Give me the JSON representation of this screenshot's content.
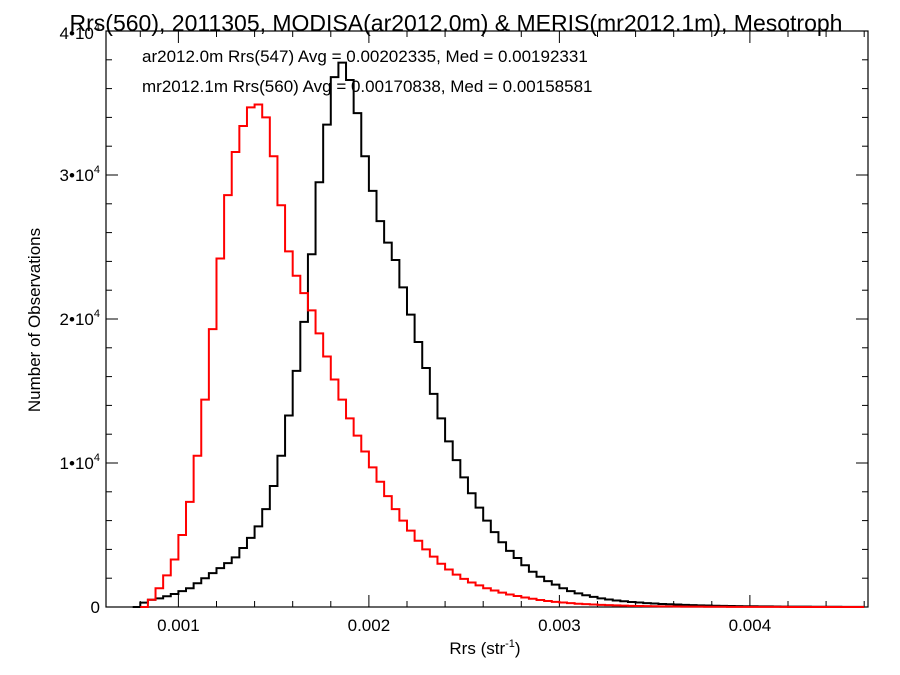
{
  "chart_data": {
    "type": "line",
    "title": "Rrs(560), 2011305, MODISA(ar2012.0m) & MERIS(mr2012.1m), Mesotroph",
    "xlabel_main": "Rrs (str",
    "xlabel_sup": "-1",
    "xlabel_close": ")",
    "ylabel": "Number of Observations",
    "xlim": [
      0.00062,
      0.00462
    ],
    "ylim": [
      0,
      40000
    ],
    "xticks": [
      {
        "value": 0.001,
        "label": "0.001"
      },
      {
        "value": 0.002,
        "label": "0.002"
      },
      {
        "value": 0.003,
        "label": "0.003"
      },
      {
        "value": 0.004,
        "label": "0.004"
      }
    ],
    "yticks": [
      {
        "value": 0,
        "label": "0",
        "exp": ""
      },
      {
        "value": 10000,
        "label": "1•10",
        "exp": "4"
      },
      {
        "value": 20000,
        "label": "2•10",
        "exp": "4"
      },
      {
        "value": 30000,
        "label": "3•10",
        "exp": "4"
      },
      {
        "value": 40000,
        "label": "4•10",
        "exp": "4"
      }
    ],
    "annotations": [
      {
        "text": "ar2012.0m Rrs(547) Avg = 0.00202335, Med = 0.00192331",
        "color": "#000000"
      },
      {
        "text": "mr2012.1m Rrs(560) Avg = 0.00170838, Med = 0.00158581",
        "color": "#ff0000"
      }
    ],
    "series": [
      {
        "color": "#000000",
        "x": [
          0.00078,
          0.00082,
          0.00086,
          0.0009,
          0.00094,
          0.00098,
          0.00102,
          0.00106,
          0.0011,
          0.00114,
          0.00118,
          0.00122,
          0.00126,
          0.0013,
          0.00134,
          0.00138,
          0.00142,
          0.00146,
          0.0015,
          0.00154,
          0.00158,
          0.00162,
          0.00166,
          0.0017,
          0.00174,
          0.00178,
          0.00182,
          0.00186,
          0.0019,
          0.00194,
          0.00198,
          0.00202,
          0.00206,
          0.0021,
          0.00214,
          0.00218,
          0.00222,
          0.00226,
          0.0023,
          0.00234,
          0.00238,
          0.00242,
          0.00246,
          0.0025,
          0.00254,
          0.00258,
          0.00262,
          0.00266,
          0.0027,
          0.00274,
          0.00278,
          0.00282,
          0.00286,
          0.0029,
          0.00294,
          0.00298,
          0.00302,
          0.00306,
          0.0031,
          0.00314,
          0.00318,
          0.00322,
          0.00326,
          0.0033,
          0.00334,
          0.00338,
          0.00342,
          0.00346,
          0.0035,
          0.00354,
          0.00358,
          0.00362,
          0.00366,
          0.0037,
          0.00374,
          0.00378,
          0.00382,
          0.00386,
          0.0039,
          0.00394,
          0.00398,
          0.00402,
          0.00406,
          0.0041,
          0.00414,
          0.00418,
          0.00422,
          0.00426,
          0.0043,
          0.00434,
          0.00438,
          0.00442,
          0.00446,
          0.0045,
          0.00454,
          0.00458
        ],
        "y": [
          0,
          300,
          500,
          600,
          750,
          900,
          1100,
          1300,
          1650,
          2000,
          2350,
          2700,
          3050,
          3450,
          4100,
          4800,
          5600,
          6800,
          8400,
          10500,
          13300,
          16400,
          19800,
          24500,
          29500,
          33500,
          36800,
          37800,
          36600,
          34300,
          31300,
          28900,
          26800,
          25300,
          24100,
          22200,
          20300,
          18400,
          16600,
          14800,
          13100,
          11500,
          10200,
          9000,
          7900,
          6900,
          6000,
          5200,
          4500,
          3900,
          3400,
          2900,
          2450,
          2100,
          1800,
          1550,
          1300,
          1100,
          950,
          820,
          700,
          600,
          520,
          450,
          400,
          350,
          310,
          270,
          240,
          210,
          190,
          170,
          150,
          130,
          115,
          100,
          90,
          80,
          70,
          60,
          55,
          50,
          45,
          40,
          35,
          30,
          28,
          25,
          22,
          20,
          18,
          16,
          14,
          12,
          10,
          8
        ]
      },
      {
        "color": "#ff0000",
        "x": [
          0.00082,
          0.00086,
          0.0009,
          0.00094,
          0.00098,
          0.00102,
          0.00106,
          0.0011,
          0.00114,
          0.00118,
          0.00122,
          0.00126,
          0.0013,
          0.00134,
          0.00138,
          0.00142,
          0.00146,
          0.0015,
          0.00154,
          0.00158,
          0.00162,
          0.00166,
          0.0017,
          0.00174,
          0.00178,
          0.00182,
          0.00186,
          0.0019,
          0.00194,
          0.00198,
          0.00202,
          0.00206,
          0.0021,
          0.00214,
          0.00218,
          0.00222,
          0.00226,
          0.0023,
          0.00234,
          0.00238,
          0.00242,
          0.00246,
          0.0025,
          0.00254,
          0.00258,
          0.00262,
          0.00266,
          0.0027,
          0.00274,
          0.00278,
          0.00282,
          0.00286,
          0.0029,
          0.00294,
          0.00298,
          0.00302,
          0.00306,
          0.0031,
          0.00314,
          0.00318,
          0.00322,
          0.00326,
          0.0033,
          0.00334,
          0.00338,
          0.00342,
          0.00346,
          0.0035,
          0.00354,
          0.00358,
          0.00362,
          0.00366,
          0.0037,
          0.00374,
          0.00378,
          0.00382,
          0.00386,
          0.0039,
          0.00394,
          0.00398,
          0.00402,
          0.00406,
          0.0041,
          0.00414,
          0.00418,
          0.00422,
          0.00426,
          0.0043,
          0.00434,
          0.00438,
          0.00442,
          0.00446,
          0.0045,
          0.00454,
          0.00458
        ],
        "y": [
          0,
          500,
          1300,
          2200,
          3300,
          5000,
          7300,
          10500,
          14400,
          19300,
          24200,
          28600,
          31600,
          33400,
          34700,
          34900,
          34000,
          31300,
          27900,
          24700,
          23000,
          21800,
          20600,
          19000,
          17400,
          15800,
          14400,
          13100,
          11900,
          10800,
          9700,
          8700,
          7700,
          6800,
          6000,
          5300,
          4600,
          4000,
          3500,
          3000,
          2600,
          2250,
          1950,
          1700,
          1500,
          1300,
          1150,
          1000,
          870,
          760,
          660,
          570,
          490,
          420,
          360,
          310,
          270,
          230,
          200,
          170,
          150,
          130,
          110,
          95,
          80,
          70,
          60,
          50,
          45,
          40,
          35,
          30,
          26,
          22,
          19,
          16,
          14,
          12,
          10,
          9,
          8,
          7,
          6,
          5,
          5,
          4,
          4,
          3,
          3,
          2,
          2,
          2,
          1,
          1,
          1
        ]
      }
    ]
  }
}
